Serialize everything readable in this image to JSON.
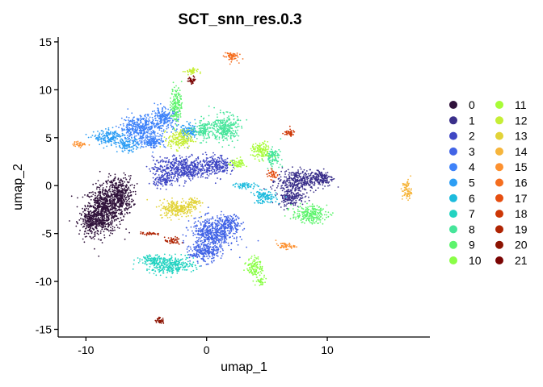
{
  "chart_data": {
    "type": "scatter",
    "title": "SCT_snn_res.0.3",
    "xlabel": "umap_1",
    "ylabel": "umap_2",
    "xlim": [
      -12.3,
      18.5
    ],
    "ylim": [
      -15.8,
      15.5
    ],
    "x_ticks": [
      -10,
      0,
      10
    ],
    "y_ticks": [
      -15,
      -10,
      -5,
      0,
      5,
      10,
      15
    ],
    "grid": false,
    "legend_position": "right",
    "legend_columns": 2,
    "clusters": [
      {
        "name": "0",
        "color": "#30123B",
        "blobs": [
          [
            -8.5,
            -2.5,
            1.4,
            2.2
          ],
          [
            -7.2,
            -1.0,
            1.0,
            1.8
          ],
          [
            -9.5,
            -3.8,
            0.9,
            1.3
          ]
        ]
      },
      {
        "name": "1",
        "color": "#3A2F8A",
        "blobs": [
          [
            7.5,
            0.5,
            1.5,
            1.0
          ],
          [
            9.5,
            0.8,
            0.9,
            0.8
          ],
          [
            7.0,
            -1.2,
            1.0,
            0.8
          ]
        ]
      },
      {
        "name": "2",
        "color": "#3F47C4",
        "blobs": [
          [
            -2.0,
            1.8,
            2.2,
            1.1
          ],
          [
            0.8,
            2.2,
            1.0,
            0.9
          ],
          [
            -3.5,
            0.5,
            0.8,
            0.6
          ]
        ]
      },
      {
        "name": "3",
        "color": "#4264E6",
        "blobs": [
          [
            0.5,
            -5.0,
            1.6,
            1.5
          ],
          [
            -0.2,
            -7.0,
            1.1,
            0.9
          ],
          [
            2.0,
            -4.0,
            0.8,
            0.8
          ]
        ]
      },
      {
        "name": "4",
        "color": "#3E82F9",
        "blobs": [
          [
            -5.5,
            6.0,
            1.5,
            1.2
          ],
          [
            -3.5,
            7.0,
            1.0,
            1.0
          ],
          [
            -4.5,
            4.6,
            1.0,
            0.6
          ]
        ]
      },
      {
        "name": "5",
        "color": "#2D9EF4",
        "blobs": [
          [
            -8.0,
            5.0,
            1.2,
            0.7
          ],
          [
            -6.5,
            4.2,
            0.8,
            0.6
          ],
          [
            -1.5,
            5.6,
            0.8,
            0.7
          ]
        ]
      },
      {
        "name": "6",
        "color": "#1CBBDD",
        "blobs": [
          [
            4.8,
            -1.2,
            0.9,
            0.6
          ],
          [
            3.2,
            0.0,
            0.9,
            0.3
          ]
        ]
      },
      {
        "name": "7",
        "color": "#23D3C1",
        "blobs": [
          [
            -3.0,
            -8.3,
            1.8,
            0.8
          ],
          [
            -4.5,
            -7.7,
            0.8,
            0.5
          ]
        ]
      },
      {
        "name": "8",
        "color": "#46E59A",
        "blobs": [
          [
            1.5,
            6.0,
            1.0,
            1.3
          ],
          [
            -0.3,
            5.8,
            0.6,
            1.0
          ],
          [
            5.5,
            3.0,
            0.6,
            0.8
          ]
        ]
      },
      {
        "name": "9",
        "color": "#5DF46D",
        "blobs": [
          [
            8.5,
            -3.0,
            1.3,
            0.8
          ],
          [
            -2.5,
            8.5,
            0.4,
            1.8
          ]
        ]
      },
      {
        "name": "10",
        "color": "#8AFE46",
        "blobs": [
          [
            4.0,
            -8.5,
            0.6,
            0.9
          ],
          [
            4.5,
            -10.0,
            0.4,
            0.4
          ]
        ]
      },
      {
        "name": "11",
        "color": "#A8FC38",
        "blobs": [
          [
            4.5,
            3.6,
            0.7,
            0.8
          ],
          [
            2.6,
            2.3,
            0.6,
            0.5
          ]
        ]
      },
      {
        "name": "12",
        "color": "#C6EE36",
        "blobs": [
          [
            -1.3,
            11.9,
            0.5,
            0.35
          ],
          [
            -2.2,
            4.8,
            0.9,
            0.9
          ]
        ]
      },
      {
        "name": "13",
        "color": "#E2D338",
        "blobs": [
          [
            -2.5,
            -2.4,
            1.3,
            0.8
          ],
          [
            -1.2,
            -1.8,
            0.6,
            0.5
          ]
        ]
      },
      {
        "name": "14",
        "color": "#F6B53B",
        "blobs": [
          [
            16.6,
            -0.5,
            0.35,
            1.0
          ]
        ]
      },
      {
        "name": "15",
        "color": "#FD9130",
        "blobs": [
          [
            6.5,
            -6.3,
            0.7,
            0.3
          ],
          [
            -10.5,
            4.3,
            0.5,
            0.25
          ]
        ]
      },
      {
        "name": "16",
        "color": "#F56E1F",
        "blobs": [
          [
            2.0,
            13.5,
            0.55,
            0.5
          ]
        ]
      },
      {
        "name": "17",
        "color": "#E64E10",
        "blobs": [
          [
            5.5,
            1.2,
            0.4,
            0.5
          ]
        ]
      },
      {
        "name": "18",
        "color": "#CD3706",
        "blobs": [
          [
            6.8,
            5.5,
            0.5,
            0.35
          ]
        ]
      },
      {
        "name": "19",
        "color": "#AF2403",
        "blobs": [
          [
            -2.8,
            -5.8,
            0.6,
            0.35
          ],
          [
            -4.8,
            -5.0,
            0.6,
            0.15
          ]
        ]
      },
      {
        "name": "20",
        "color": "#8C1302",
        "blobs": [
          [
            -3.9,
            -14.1,
            0.35,
            0.3
          ]
        ]
      },
      {
        "name": "21",
        "color": "#7A0403",
        "blobs": [
          [
            -1.2,
            11.0,
            0.3,
            0.35
          ]
        ]
      }
    ]
  }
}
